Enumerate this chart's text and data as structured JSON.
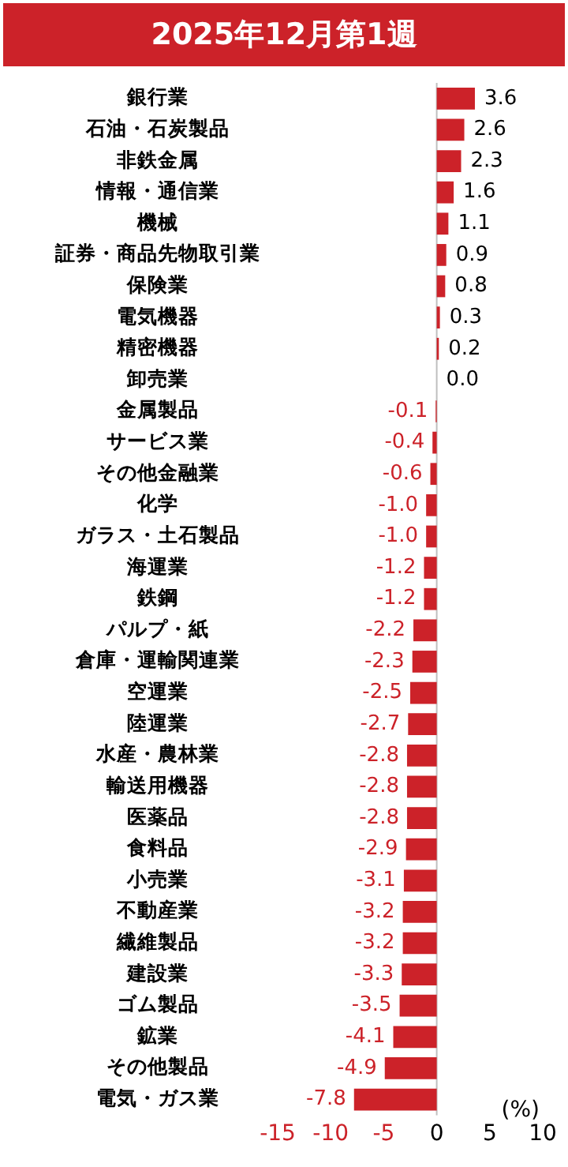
{
  "chart_data": {
    "type": "bar",
    "orientation": "horizontal",
    "title": "2025年12月第1週",
    "categories": [
      "銀行業",
      "石油・石炭製品",
      "非鉄金属",
      "情報・通信業",
      "機械",
      "証券・商品先物取引業",
      "保険業",
      "電気機器",
      "精密機器",
      "卸売業",
      "金属製品",
      "サービス業",
      "その他金融業",
      "化学",
      "ガラス・土石製品",
      "海運業",
      "鉄鋼",
      "パルプ・紙",
      "倉庫・運輸関連業",
      "空運業",
      "陸運業",
      "水産・農林業",
      "輸送用機器",
      "医薬品",
      "食料品",
      "小売業",
      "不動産業",
      "繊維製品",
      "建設業",
      "ゴム製品",
      "鉱業",
      "その他製品",
      "電気・ガス業"
    ],
    "values": [
      3.6,
      2.6,
      2.3,
      1.6,
      1.1,
      0.9,
      0.8,
      0.3,
      0.2,
      0.0,
      -0.1,
      -0.4,
      -0.6,
      -1.0,
      -1.0,
      -1.2,
      -1.2,
      -2.2,
      -2.3,
      -2.5,
      -2.7,
      -2.8,
      -2.8,
      -2.8,
      -2.9,
      -3.1,
      -3.2,
      -3.2,
      -3.3,
      -3.5,
      -4.1,
      -4.9,
      -7.8
    ],
    "value_labels": [
      "3.6",
      "2.6",
      "2.3",
      "1.6",
      "1.1",
      "0.9",
      "0.8",
      "0.3",
      "0.2",
      "0.0",
      "-0.1",
      "-0.4",
      "-0.6",
      "-1.0",
      "-1.0",
      "-1.2",
      "-1.2",
      "-2.2",
      "-2.3",
      "-2.5",
      "-2.7",
      "-2.8",
      "-2.8",
      "-2.8",
      "-2.9",
      "-3.1",
      "-3.2",
      "-3.2",
      "-3.3",
      "-3.5",
      "-4.1",
      "-4.9",
      "-7.8"
    ],
    "color": "#cc2229",
    "xlim": [
      -15,
      10
    ],
    "xticks": [
      -15,
      -10,
      -5,
      0,
      5,
      10
    ],
    "ref_lines": [
      {
        "axis": "x",
        "value": 0,
        "color": "#bfbfbf"
      }
    ],
    "annotations": [
      "(%)"
    ]
  }
}
